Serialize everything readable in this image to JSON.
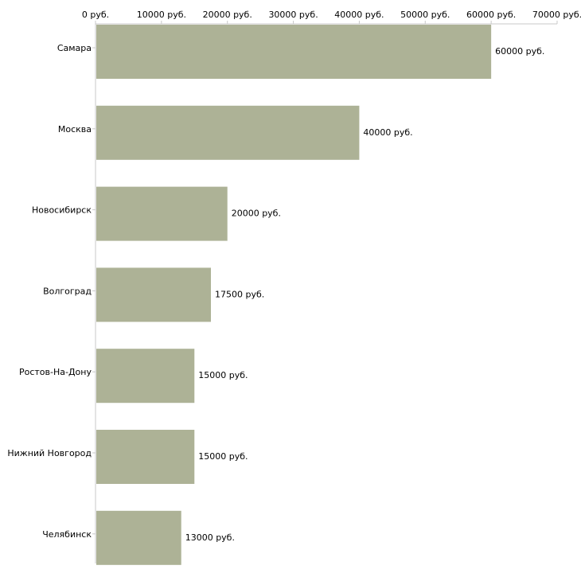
{
  "colors": {
    "bar": "#adb296",
    "axis": "#c8c8c8",
    "text": "#000000",
    "background": "#ffffff"
  },
  "chart_data": {
    "type": "bar",
    "orientation": "horizontal",
    "title": "",
    "xlabel": "",
    "ylabel": "",
    "xlim": [
      0,
      70000
    ],
    "x_ticks": [
      0,
      10000,
      20000,
      30000,
      40000,
      50000,
      60000,
      70000
    ],
    "x_tick_labels": [
      "0 руб.",
      "10000 руб.",
      "20000 руб.",
      "30000 руб.",
      "40000 руб.",
      "50000 руб.",
      "60000 руб.",
      "70000 руб."
    ],
    "x_axis_position": "top",
    "grid": false,
    "categories": [
      "Самара",
      "Москва",
      "Новосибирск",
      "Волгоград",
      "Ростов-На-Дону",
      "Нижний Новгород",
      "Челябинск"
    ],
    "values": [
      60000,
      40000,
      20000,
      17500,
      15000,
      15000,
      13000
    ],
    "value_labels": [
      "60000 руб.",
      "40000 руб.",
      "20000 руб.",
      "17500 руб.",
      "15000 руб.",
      "15000 руб.",
      "13000 руб."
    ]
  }
}
